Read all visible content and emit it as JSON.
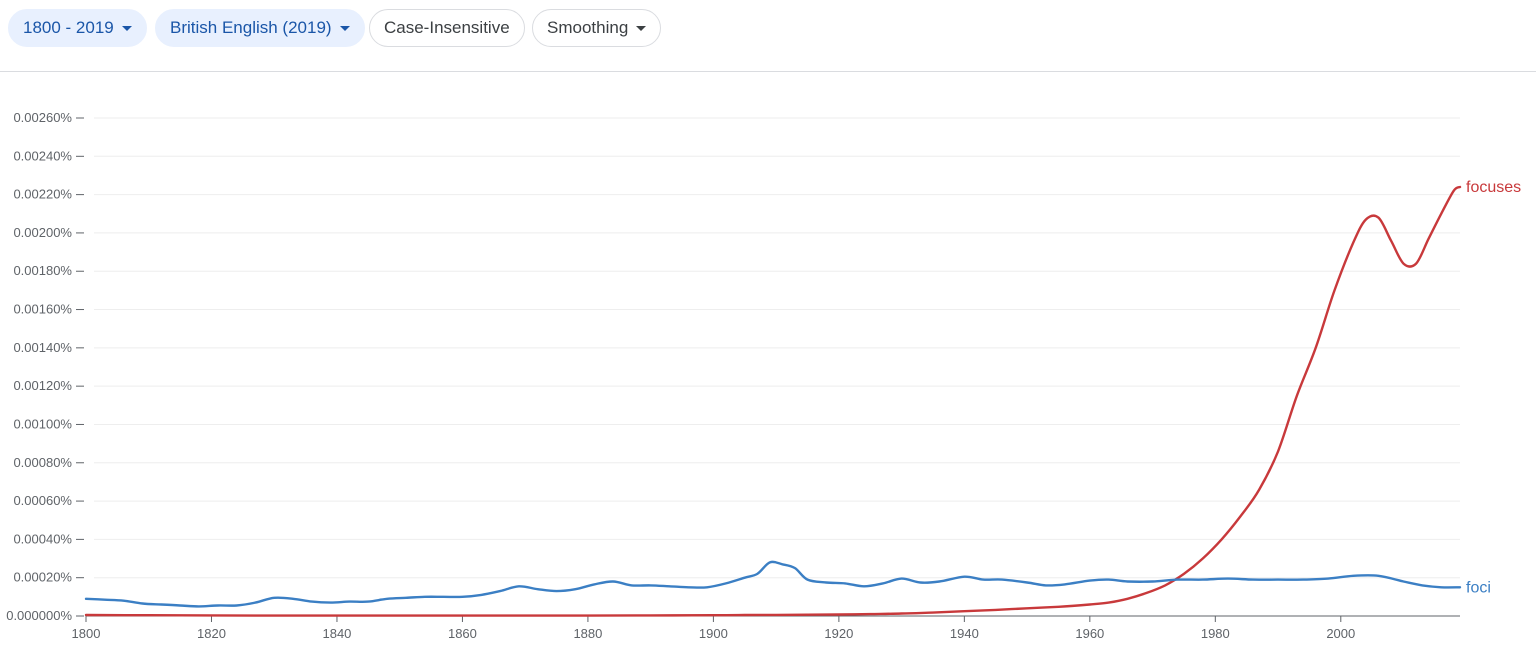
{
  "toolbar": {
    "range_label": "1800 - 2019",
    "corpus_label": "British English (2019)",
    "case_label": "Case-Insensitive",
    "smoothing_label": "Smoothing"
  },
  "colors": {
    "foci": "#3b7fc4",
    "focuses": "#c8393b",
    "chip_text": "#1a56a8"
  },
  "icons": {
    "dropdown": "caret-down-icon"
  },
  "chart_data": {
    "type": "line",
    "title": "",
    "xlabel": "",
    "ylabel": "",
    "xlim": [
      1800,
      2019
    ],
    "ylim": [
      0,
      0.0026
    ],
    "grid": true,
    "x_ticks": [
      "1800",
      "1820",
      "1840",
      "1860",
      "1880",
      "1900",
      "1920",
      "1940",
      "1960",
      "1980",
      "2000"
    ],
    "x_tick_values": [
      1800,
      1820,
      1840,
      1860,
      1880,
      1900,
      1920,
      1940,
      1960,
      1980,
      2000
    ],
    "y_ticks": [
      "0.000000%",
      "0.00020%",
      "0.00040%",
      "0.00060%",
      "0.00080%",
      "0.00100%",
      "0.00120%",
      "0.00140%",
      "0.00160%",
      "0.00180%",
      "0.00200%",
      "0.00220%",
      "0.00240%",
      "0.00260%"
    ],
    "y_tick_values": [
      0,
      0.0002,
      0.0004,
      0.0006,
      0.0008,
      0.001,
      0.0012,
      0.0014,
      0.0016,
      0.0018,
      0.002,
      0.0022,
      0.0024,
      0.0026
    ],
    "series": [
      {
        "name": "focuses",
        "color": "#c8393b",
        "points": [
          [
            1800,
            5e-06
          ],
          [
            1810,
            4e-06
          ],
          [
            1820,
            3e-06
          ],
          [
            1830,
            2e-06
          ],
          [
            1840,
            2e-06
          ],
          [
            1850,
            2e-06
          ],
          [
            1860,
            2e-06
          ],
          [
            1870,
            2e-06
          ],
          [
            1880,
            2e-06
          ],
          [
            1890,
            3e-06
          ],
          [
            1900,
            4e-06
          ],
          [
            1905,
            5e-06
          ],
          [
            1910,
            6e-06
          ],
          [
            1915,
            7e-06
          ],
          [
            1920,
            8e-06
          ],
          [
            1925,
            1e-05
          ],
          [
            1930,
            1.3e-05
          ],
          [
            1935,
            1.8e-05
          ],
          [
            1940,
            2.5e-05
          ],
          [
            1945,
            3.2e-05
          ],
          [
            1950,
            4e-05
          ],
          [
            1955,
            4.8e-05
          ],
          [
            1960,
            6e-05
          ],
          [
            1963,
            7e-05
          ],
          [
            1966,
            9e-05
          ],
          [
            1969,
            0.00012
          ],
          [
            1972,
            0.00016
          ],
          [
            1975,
            0.00022
          ],
          [
            1978,
            0.0003
          ],
          [
            1981,
            0.0004
          ],
          [
            1984,
            0.00052
          ],
          [
            1987,
            0.00066
          ],
          [
            1990,
            0.00086
          ],
          [
            1993,
            0.00115
          ],
          [
            1996,
            0.0014
          ],
          [
            1999,
            0.0017
          ],
          [
            2002,
            0.00195
          ],
          [
            2004,
            0.00207
          ],
          [
            2006,
            0.00208
          ],
          [
            2008,
            0.00196
          ],
          [
            2010,
            0.00184
          ],
          [
            2012,
            0.00184
          ],
          [
            2014,
            0.00197
          ],
          [
            2016,
            0.0021
          ],
          [
            2018,
            0.00222
          ],
          [
            2019,
            0.00224
          ]
        ]
      },
      {
        "name": "foci",
        "color": "#3b7fc4",
        "points": [
          [
            1800,
            9e-05
          ],
          [
            1803,
            8.5e-05
          ],
          [
            1806,
            8e-05
          ],
          [
            1809,
            6.5e-05
          ],
          [
            1812,
            6e-05
          ],
          [
            1815,
            5.5e-05
          ],
          [
            1818,
            5e-05
          ],
          [
            1821,
            5.5e-05
          ],
          [
            1824,
            5.5e-05
          ],
          [
            1827,
            7e-05
          ],
          [
            1830,
            9.5e-05
          ],
          [
            1833,
            9e-05
          ],
          [
            1836,
            7.5e-05
          ],
          [
            1839,
            7e-05
          ],
          [
            1842,
            7.5e-05
          ],
          [
            1845,
            7.5e-05
          ],
          [
            1848,
            9e-05
          ],
          [
            1851,
            9.5e-05
          ],
          [
            1854,
            0.0001
          ],
          [
            1857,
            0.0001
          ],
          [
            1860,
            0.0001
          ],
          [
            1863,
            0.00011
          ],
          [
            1866,
            0.00013
          ],
          [
            1869,
            0.000155
          ],
          [
            1872,
            0.00014
          ],
          [
            1875,
            0.00013
          ],
          [
            1878,
            0.00014
          ],
          [
            1881,
            0.000165
          ],
          [
            1884,
            0.00018
          ],
          [
            1887,
            0.00016
          ],
          [
            1890,
            0.00016
          ],
          [
            1893,
            0.000155
          ],
          [
            1896,
            0.00015
          ],
          [
            1899,
            0.00015
          ],
          [
            1902,
            0.00017
          ],
          [
            1905,
            0.0002
          ],
          [
            1907,
            0.00022
          ],
          [
            1909,
            0.00028
          ],
          [
            1911,
            0.00027
          ],
          [
            1913,
            0.00025
          ],
          [
            1915,
            0.00019
          ],
          [
            1918,
            0.000175
          ],
          [
            1921,
            0.00017
          ],
          [
            1924,
            0.000155
          ],
          [
            1927,
            0.00017
          ],
          [
            1930,
            0.000195
          ],
          [
            1933,
            0.000175
          ],
          [
            1936,
            0.00018
          ],
          [
            1940,
            0.000205
          ],
          [
            1943,
            0.00019
          ],
          [
            1946,
            0.00019
          ],
          [
            1950,
            0.000175
          ],
          [
            1953,
            0.00016
          ],
          [
            1956,
            0.000165
          ],
          [
            1960,
            0.000185
          ],
          [
            1963,
            0.00019
          ],
          [
            1966,
            0.00018
          ],
          [
            1970,
            0.00018
          ],
          [
            1974,
            0.00019
          ],
          [
            1978,
            0.00019
          ],
          [
            1982,
            0.000195
          ],
          [
            1986,
            0.00019
          ],
          [
            1990,
            0.00019
          ],
          [
            1994,
            0.00019
          ],
          [
            1998,
            0.000195
          ],
          [
            2002,
            0.00021
          ],
          [
            2006,
            0.00021
          ],
          [
            2010,
            0.00018
          ],
          [
            2013,
            0.00016
          ],
          [
            2016,
            0.00015
          ],
          [
            2019,
            0.00015
          ]
        ]
      }
    ]
  }
}
